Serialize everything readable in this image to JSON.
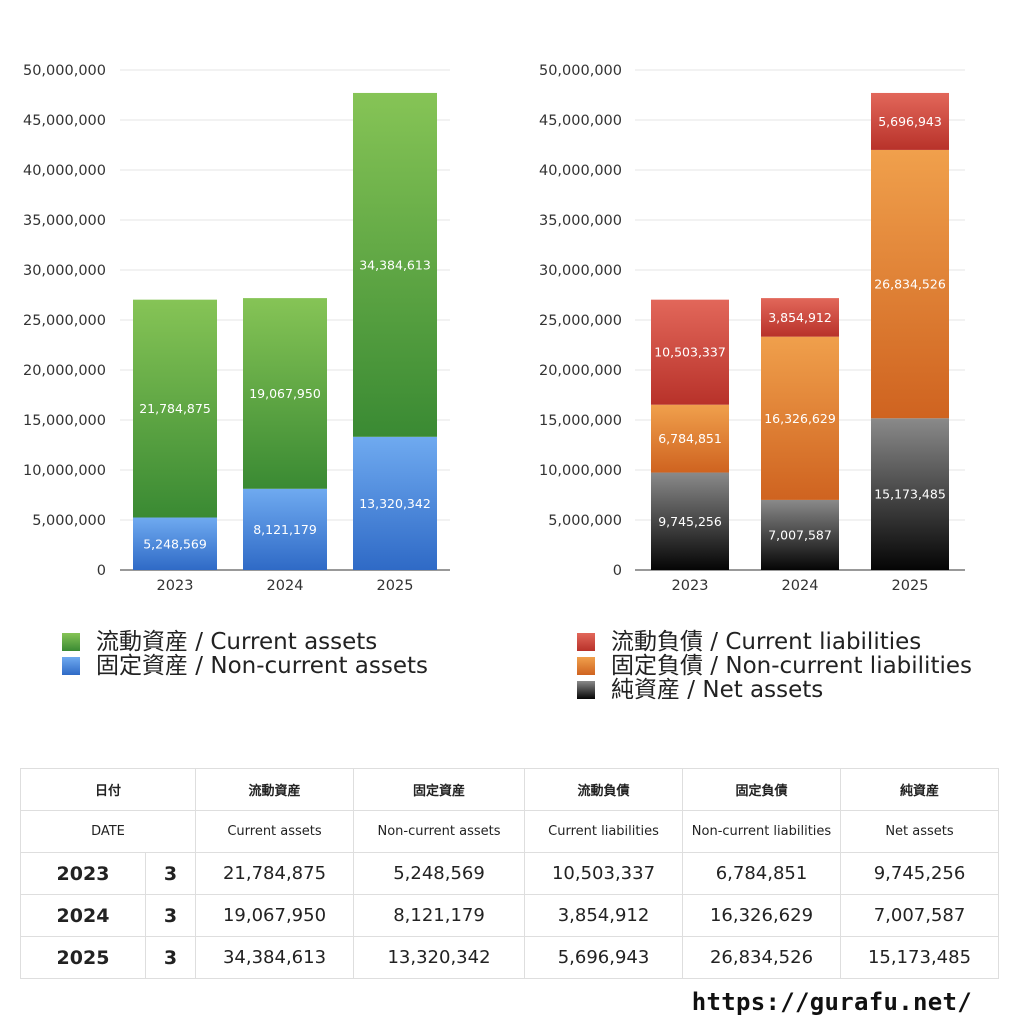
{
  "colors": {
    "current_assets": [
      "#86c456",
      "#3a8a33"
    ],
    "non_current_assets": [
      "#6faaf0",
      "#2f6ac6"
    ],
    "current_liabilities": [
      "#e2675a",
      "#b8322a"
    ],
    "non_current_liabilities": [
      "#f0a04c",
      "#cf6320"
    ],
    "net_assets": [
      "#8a8a8a",
      "#050505"
    ]
  },
  "chart_data": [
    {
      "type": "bar",
      "stacked": true,
      "categories": [
        "2023",
        "2024",
        "2025"
      ],
      "y_ticks": [
        "0",
        "5,000,000",
        "10,000,000",
        "15,000,000",
        "20,000,000",
        "25,000,000",
        "30,000,000",
        "35,000,000",
        "40,000,000",
        "45,000,000",
        "50,000,000"
      ],
      "ylim": [
        0,
        50000000
      ],
      "grid": true,
      "series": [
        {
          "name": "固定資産 / Non-current assets",
          "values": [
            5248569,
            8121179,
            13320342
          ],
          "labels": [
            "5,248,569",
            "8,121,179",
            "13,320,342"
          ],
          "color_key": "non_current_assets"
        },
        {
          "name": "流動資産 / Current assets",
          "values": [
            21784875,
            19067950,
            34384613
          ],
          "labels": [
            "21,784,875",
            "19,067,950",
            "34,384,613"
          ],
          "color_key": "current_assets"
        }
      ],
      "legend": [
        {
          "label": "流動資産 / Current assets",
          "color_key": "current_assets"
        },
        {
          "label": "固定資産 / Non-current assets",
          "color_key": "non_current_assets"
        }
      ]
    },
    {
      "type": "bar",
      "stacked": true,
      "categories": [
        "2023",
        "2024",
        "2025"
      ],
      "y_ticks": [
        "0",
        "5,000,000",
        "10,000,000",
        "15,000,000",
        "20,000,000",
        "25,000,000",
        "30,000,000",
        "35,000,000",
        "40,000,000",
        "45,000,000",
        "50,000,000"
      ],
      "ylim": [
        0,
        50000000
      ],
      "grid": true,
      "series": [
        {
          "name": "純資産 / Net assets",
          "values": [
            9745256,
            7007587,
            15173485
          ],
          "labels": [
            "9,745,256",
            "7,007,587",
            "15,173,485"
          ],
          "color_key": "net_assets"
        },
        {
          "name": "固定負債 / Non-current liabilities",
          "values": [
            6784851,
            16326629,
            26834526
          ],
          "labels": [
            "6,784,851",
            "16,326,629",
            "26,834,526"
          ],
          "color_key": "non_current_liabilities"
        },
        {
          "name": "流動負債 / Current liabilities",
          "values": [
            10503337,
            3854912,
            5696943
          ],
          "labels": [
            "10,503,337",
            "3,854,912",
            "5,696,943"
          ],
          "color_key": "current_liabilities"
        }
      ],
      "legend": [
        {
          "label": "流動負債 / Current liabilities",
          "color_key": "current_liabilities"
        },
        {
          "label": "固定負債 / Non-current liabilities",
          "color_key": "non_current_liabilities"
        },
        {
          "label": "純資産 / Net assets",
          "color_key": "net_assets"
        }
      ]
    }
  ],
  "table": {
    "header_jp": [
      "日付",
      "流動資産",
      "固定資産",
      "流動負債",
      "固定負債",
      "純資産"
    ],
    "header_en": [
      "DATE",
      "Current assets",
      "Non-current assets",
      "Current liabilities",
      "Non-current liabilities",
      "Net assets"
    ],
    "rows": [
      {
        "year": "2023",
        "month": "3",
        "values": [
          "21,784,875",
          "5,248,569",
          "10,503,337",
          "6,784,851",
          "9,745,256"
        ]
      },
      {
        "year": "2024",
        "month": "3",
        "values": [
          "19,067,950",
          "8,121,179",
          "3,854,912",
          "16,326,629",
          "7,007,587"
        ]
      },
      {
        "year": "2025",
        "month": "3",
        "values": [
          "34,384,613",
          "13,320,342",
          "5,696,943",
          "26,834,526",
          "15,173,485"
        ]
      }
    ]
  },
  "footer": {
    "url": "https://gurafu.net/"
  }
}
